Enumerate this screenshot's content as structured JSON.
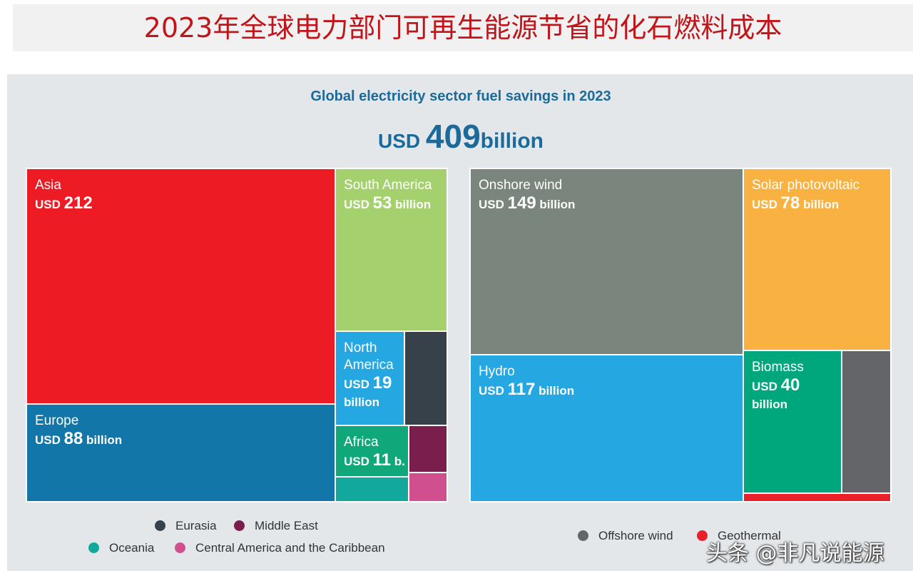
{
  "header": {
    "title": "2023年全球电力部门可再生能源节省的化石燃料成本"
  },
  "chart_data": [
    {
      "type": "treemap",
      "title": "Global electricity sector fuel savings in 2023",
      "total": {
        "prefix": "USD ",
        "value": "409",
        "unit": "billion"
      },
      "colors": {
        "Asia": "#ed1c24",
        "Europe": "#1276a8",
        "South America": "#a4d16d",
        "North America": "#25a7e1",
        "Eurasia": "#36414a",
        "Africa": "#10a87a",
        "Middle East": "#7a1f4d",
        "Oceania": "#13a89e",
        "Central America and the Caribbean": "#cf4f8f"
      },
      "series": [
        {
          "name": "Asia",
          "value": 212,
          "label_name": "Asia",
          "label_prefix": "USD ",
          "label_value": "212",
          "label_unit": ""
        },
        {
          "name": "Europe",
          "value": 88,
          "label_name": "Europe",
          "label_prefix": "USD ",
          "label_value": "88",
          "label_unit": " billion"
        },
        {
          "name": "South America",
          "value": 53,
          "label_name": "South America",
          "label_prefix": "USD ",
          "label_value": "53",
          "label_unit": " billion"
        },
        {
          "name": "North America",
          "value": 19,
          "label_name_lines": [
            "North",
            "America"
          ],
          "label_prefix": "USD ",
          "label_value": "19",
          "label_unit_line": "billion"
        },
        {
          "name": "Africa",
          "value": 11,
          "label_name": "Africa",
          "label_prefix": "USD ",
          "label_value": "11",
          "label_unit": " b."
        },
        {
          "name": "Eurasia"
        },
        {
          "name": "Middle East"
        },
        {
          "name": "Oceania"
        },
        {
          "name": "Central America and the Caribbean"
        }
      ],
      "legend": [
        "Eurasia",
        "Middle East",
        "Oceania",
        "Central America and the Caribbean"
      ]
    },
    {
      "type": "treemap",
      "colors": {
        "Onshore wind": "#79857d",
        "Solar photovoltaic": "#f9b142",
        "Hydro": "#25a7e1",
        "Biomass": "#00a77d",
        "Offshore wind": "#646569",
        "Geothermal": "#e8202a"
      },
      "series": [
        {
          "name": "Onshore wind",
          "value": 149,
          "label_name": "Onshore wind",
          "label_prefix": "USD ",
          "label_value": "149",
          "label_unit": " billion"
        },
        {
          "name": "Solar photovoltaic",
          "value": 78,
          "label_name": "Solar photovoltaic",
          "label_prefix": "USD ",
          "label_value": "78",
          "label_unit": " billion"
        },
        {
          "name": "Hydro",
          "value": 117,
          "label_name": "Hydro",
          "label_prefix": "USD ",
          "label_value": "117",
          "label_unit": " billion"
        },
        {
          "name": "Biomass",
          "value": 40,
          "label_name": "Biomass",
          "label_prefix": "USD ",
          "label_value": "40",
          "label_unit_line": "billion"
        },
        {
          "name": "Offshore wind"
        },
        {
          "name": "Geothermal"
        }
      ],
      "legend": [
        "Offshore wind",
        "Geothermal"
      ]
    }
  ],
  "watermark": "头条 @非凡说能源"
}
